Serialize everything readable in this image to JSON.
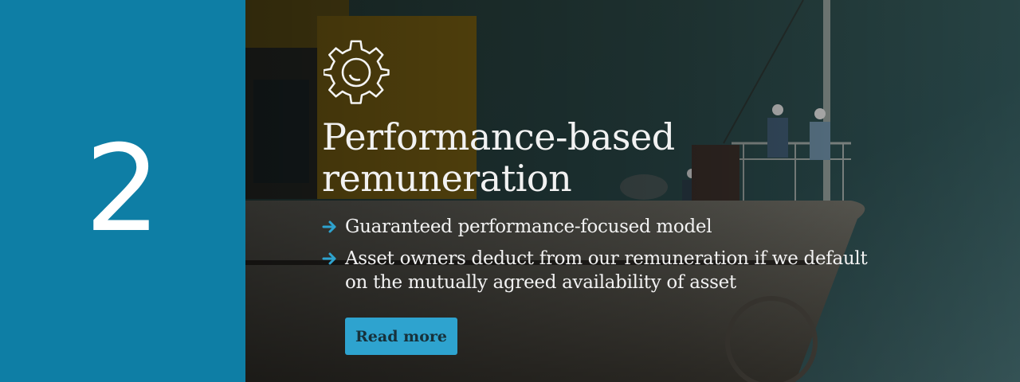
{
  "step": {
    "number": "2"
  },
  "section": {
    "icon": "gear-icon",
    "title_line1": "Performance-based",
    "title_line2": "remuneration",
    "bullets": [
      {
        "icon": "arrow-right-icon",
        "text": "Guaranteed performance-focused model"
      },
      {
        "icon": "arrow-right-icon",
        "text": "Asset owners deduct from our remuneration if we default on the mutually agreed availability of asset"
      }
    ],
    "cta_label": "Read more"
  },
  "colors": {
    "panel": "#0e7ea5",
    "accent": "#2ea3cf",
    "text": "#f2f2f2"
  },
  "background": {
    "image": "ship-deck-photo"
  }
}
